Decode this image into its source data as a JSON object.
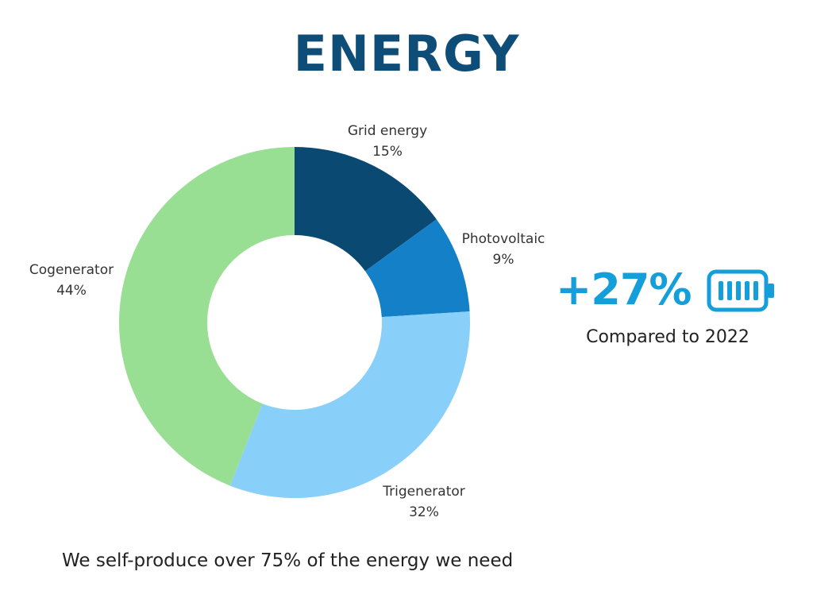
{
  "title": "ENERGY",
  "chart_data": {
    "type": "pie",
    "donut": true,
    "categories": [
      "Grid energy",
      "Photovoltaic",
      "Trigenerator",
      "Cogenerator"
    ],
    "values": [
      15,
      9,
      32,
      44
    ],
    "value_labels": [
      "15%",
      "9%",
      "32%",
      "44%"
    ],
    "colors": [
      "#0a4a72",
      "#1380c8",
      "#88cff9",
      "#98de93"
    ],
    "legend": "none"
  },
  "stat": {
    "value": "+27%",
    "caption": "Compared to 2022",
    "icon": "battery-full-icon",
    "color": "#149fda"
  },
  "footer": "We self-produce over 75% of the energy we need"
}
